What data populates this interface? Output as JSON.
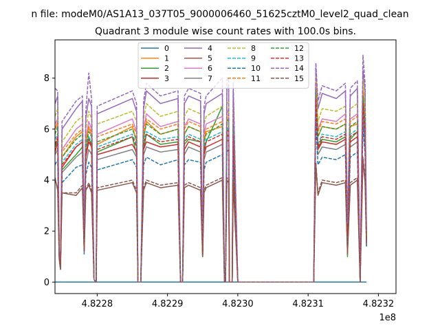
{
  "chart_data": {
    "type": "line",
    "suptitle": "n file: modeM0/AS1A13_037T05_9000006460_51625cztM0_level2_quad_clean",
    "title": "Quadrant 3 module wise count rates with 100.0s bins.",
    "xlabel": "",
    "ylabel": "",
    "x_offset_label": "1e8",
    "xlim": [
      4.82274,
      4.823225
    ],
    "ylim": [
      -0.45,
      9.5
    ],
    "x_ticks": [
      4.8228,
      4.8229,
      4.823,
      4.8231,
      4.8232
    ],
    "x_tick_labels": [
      "4.8228",
      "4.8229",
      "4.8230",
      "4.8231",
      "4.8232"
    ],
    "y_ticks": [
      0,
      2,
      4,
      6,
      8
    ],
    "y_tick_labels": [
      "0",
      "2",
      "4",
      "6",
      "8"
    ],
    "grid": false,
    "legend_position": "top-center",
    "legend_ncol": 4,
    "x_points": [
      4.82274,
      4.8227438,
      4.822746,
      4.8227478,
      4.82275,
      4.82277,
      4.822779,
      4.8227815,
      4.8227838,
      4.822788,
      4.822792,
      4.8227955,
      4.8227985,
      4.8228,
      4.82285,
      4.822856,
      4.822858,
      4.822862,
      4.822866,
      4.82287,
      4.82289,
      4.822915,
      4.8229185,
      4.8229215,
      4.822924,
      4.82293,
      4.822947,
      4.82295,
      4.822952,
      4.822955,
      4.822978,
      4.822981,
      4.8229825,
      4.8229845,
      4.822987,
      4.822988,
      4.8229895,
      4.822992,
      4.8229935,
      4.823,
      4.82305,
      4.8231,
      4.823108,
      4.823111,
      4.823114,
      4.82312,
      4.82314,
      4.823153,
      4.823156,
      4.82316,
      4.82317,
      4.823174,
      4.823178,
      4.823181,
      4.823183
    ],
    "series": [
      {
        "name": "0",
        "style": "solid",
        "color": "#1f77b4",
        "values": [
          0,
          0,
          0,
          0,
          0,
          0,
          0,
          0,
          0,
          0,
          0,
          0,
          0,
          0,
          0,
          0,
          0,
          0,
          0,
          0,
          0,
          0,
          0,
          0,
          0,
          0,
          0,
          0,
          0,
          0,
          0,
          0,
          0,
          0,
          0,
          0,
          0,
          0,
          0,
          0,
          0,
          0,
          0,
          0,
          0,
          0,
          0,
          0,
          0,
          0,
          0,
          0,
          0,
          0,
          0
        ]
      },
      {
        "name": "1",
        "style": "solid",
        "color": "#ff7f0e",
        "values": [
          6.0,
          6.3,
          1.2,
          0.7,
          4.9,
          5.7,
          5.9,
          1.4,
          5.3,
          6.1,
          5.7,
          0.1,
          0,
          5.4,
          6.1,
          5.5,
          0,
          0,
          5.6,
          6.3,
          5.8,
          6.0,
          0,
          0,
          5.8,
          6.1,
          5.9,
          1.2,
          5.5,
          5.9,
          6.1,
          0,
          0,
          6.3,
          6.4,
          0,
          0,
          0,
          6.2,
          0,
          0,
          0,
          0,
          7.8,
          5.7,
          6.1,
          6.0,
          6.2,
          2.0,
          6.1,
          6.2,
          0,
          7.6,
          6.2,
          1.8
        ]
      },
      {
        "name": "2",
        "style": "solid",
        "color": "#2ca02c",
        "values": [
          5.3,
          5.6,
          1.1,
          0.6,
          4.4,
          5.0,
          5.3,
          1.3,
          5.0,
          5.7,
          5.3,
          0.1,
          0,
          5.1,
          5.7,
          5.0,
          0,
          0,
          5.2,
          5.8,
          5.4,
          5.5,
          0,
          0,
          5.4,
          5.6,
          5.5,
          1.1,
          5.1,
          5.5,
          6.9,
          0,
          0,
          5.9,
          6.0,
          0,
          0,
          0,
          5.7,
          0,
          0,
          0,
          0,
          7.5,
          5.2,
          5.6,
          5.5,
          5.7,
          1.0,
          5.6,
          5.9,
          0,
          7.2,
          5.7,
          1.6
        ]
      },
      {
        "name": "3",
        "style": "solid",
        "color": "#d62728",
        "values": [
          5.1,
          5.5,
          1.1,
          0.6,
          4.5,
          5.3,
          5.5,
          1.3,
          4.9,
          5.5,
          5.3,
          0.1,
          0,
          5.0,
          5.4,
          5.1,
          0,
          0,
          5.2,
          5.5,
          5.3,
          5.4,
          0,
          0,
          5.2,
          5.5,
          5.3,
          1.1,
          5.0,
          5.3,
          5.6,
          0,
          0,
          5.7,
          5.8,
          0,
          0,
          0,
          5.6,
          0,
          0,
          0,
          0,
          7.1,
          5.2,
          5.5,
          5.4,
          5.6,
          1.7,
          5.5,
          5.7,
          0,
          6.9,
          5.6,
          1.6
        ]
      },
      {
        "name": "4",
        "style": "solid",
        "color": "#9467bd",
        "values": [
          7.0,
          7.3,
          1.3,
          0.7,
          6.0,
          6.8,
          7.1,
          1.6,
          6.4,
          7.2,
          6.9,
          0.1,
          0,
          6.6,
          7.2,
          6.7,
          0,
          0,
          6.8,
          7.5,
          7.0,
          7.2,
          0,
          0,
          7.0,
          7.3,
          7.1,
          1.3,
          6.6,
          7.0,
          7.4,
          0,
          0,
          7.6,
          7.7,
          0,
          0,
          0,
          7.5,
          0,
          0,
          0,
          0,
          8.4,
          6.8,
          7.4,
          7.2,
          7.5,
          2.2,
          7.3,
          7.6,
          0,
          8.3,
          7.5,
          1.9
        ]
      },
      {
        "name": "5",
        "style": "solid",
        "color": "#8c564b",
        "values": [
          4.1,
          3.6,
          0.9,
          0.5,
          3.5,
          3.4,
          3.7,
          1.2,
          3.6,
          3.8,
          3.5,
          0.1,
          0,
          3.6,
          3.9,
          3.5,
          0,
          0,
          3.6,
          3.9,
          3.7,
          3.8,
          0,
          0,
          3.7,
          3.8,
          3.6,
          1.0,
          3.5,
          3.7,
          4.0,
          0,
          0,
          4.0,
          3.9,
          0,
          0,
          0,
          3.9,
          0,
          0,
          0,
          0,
          4.6,
          3.4,
          3.9,
          3.8,
          3.9,
          1.1,
          3.8,
          4.0,
          0,
          4.8,
          3.9,
          1.4
        ]
      },
      {
        "name": "6",
        "style": "solid",
        "color": "#e377c2",
        "values": [
          6.2,
          6.4,
          1.2,
          0.7,
          5.2,
          6.0,
          6.2,
          1.4,
          5.6,
          6.3,
          6.0,
          0.1,
          0,
          5.8,
          6.4,
          5.9,
          0,
          0,
          6.0,
          6.6,
          6.1,
          6.3,
          0,
          0,
          6.1,
          6.4,
          6.2,
          1.2,
          5.8,
          6.2,
          6.5,
          0,
          0,
          6.6,
          6.8,
          0,
          0,
          0,
          6.6,
          0,
          0,
          0,
          0,
          8.0,
          6.0,
          6.4,
          6.3,
          6.6,
          2.0,
          6.4,
          6.6,
          0,
          7.7,
          6.5,
          1.8
        ]
      },
      {
        "name": "7",
        "style": "solid",
        "color": "#7f7f7f",
        "values": [
          5.0,
          5.2,
          1.0,
          0.6,
          4.3,
          4.9,
          5.1,
          1.2,
          4.6,
          5.2,
          5.0,
          0.1,
          0,
          4.8,
          5.2,
          4.9,
          0,
          0,
          5.0,
          5.3,
          5.1,
          5.2,
          0,
          0,
          5.0,
          5.3,
          5.1,
          1.0,
          4.8,
          5.1,
          5.4,
          0,
          0,
          5.5,
          5.6,
          0,
          0,
          0,
          5.4,
          0,
          0,
          0,
          0,
          6.8,
          5.0,
          5.3,
          5.2,
          5.4,
          1.6,
          5.3,
          5.5,
          0,
          6.6,
          5.4,
          1.5
        ]
      },
      {
        "name": "8",
        "style": "dashed",
        "color": "#bcbd22",
        "values": [
          6.5,
          6.8,
          1.2,
          0.7,
          5.5,
          6.3,
          6.5,
          1.5,
          6.0,
          6.7,
          6.4,
          0.1,
          0,
          6.2,
          6.7,
          6.3,
          0,
          0,
          6.4,
          7.0,
          6.5,
          6.7,
          0,
          0,
          6.5,
          6.8,
          6.6,
          1.2,
          6.2,
          6.5,
          6.9,
          0,
          0,
          7.0,
          7.1,
          0,
          0,
          0,
          6.9,
          0,
          0,
          0,
          0,
          8.1,
          6.3,
          6.8,
          6.7,
          6.9,
          2.1,
          6.8,
          7.0,
          0,
          8.0,
          6.9,
          1.8
        ]
      },
      {
        "name": "9",
        "style": "dashed",
        "color": "#17becf",
        "values": [
          5.6,
          5.8,
          1.1,
          0.6,
          4.7,
          5.4,
          5.6,
          1.3,
          5.1,
          5.7,
          5.5,
          0.1,
          0,
          5.3,
          5.8,
          5.4,
          0,
          0,
          5.5,
          5.9,
          5.6,
          5.7,
          0,
          0,
          5.6,
          5.8,
          5.6,
          1.1,
          5.3,
          5.6,
          5.9,
          0,
          0,
          6.0,
          6.1,
          0,
          0,
          0,
          5.9,
          0,
          0,
          0,
          0,
          7.3,
          5.4,
          5.8,
          5.7,
          5.9,
          1.8,
          5.8,
          6.0,
          0,
          7.1,
          5.9,
          1.6
        ]
      },
      {
        "name": "10",
        "style": "dashed",
        "color": "#1f77b4",
        "values": [
          4.6,
          4.8,
          1.0,
          0.5,
          3.9,
          4.5,
          4.6,
          1.1,
          4.2,
          4.7,
          4.5,
          0.1,
          0,
          4.4,
          4.8,
          4.5,
          0,
          0,
          4.6,
          4.9,
          4.6,
          4.8,
          0,
          0,
          4.6,
          4.8,
          4.7,
          1.0,
          4.4,
          4.7,
          5.0,
          0,
          0,
          5.1,
          5.2,
          0,
          0,
          0,
          5.0,
          0,
          0,
          0,
          0,
          6.3,
          4.6,
          4.9,
          4.8,
          5.0,
          1.5,
          4.9,
          5.1,
          0,
          6.1,
          5.0,
          1.4
        ]
      },
      {
        "name": "11",
        "style": "dashed",
        "color": "#ff7f0e",
        "values": [
          6.0,
          6.2,
          1.1,
          0.7,
          5.1,
          5.8,
          6.0,
          1.4,
          5.5,
          6.1,
          5.9,
          0.1,
          0,
          5.7,
          6.2,
          5.8,
          0,
          0,
          5.9,
          6.4,
          6.0,
          6.2,
          0,
          0,
          6.0,
          6.3,
          6.1,
          1.1,
          5.7,
          6.0,
          6.3,
          0,
          0,
          6.4,
          6.6,
          0,
          0,
          0,
          6.4,
          0,
          0,
          0,
          0,
          7.7,
          5.9,
          6.3,
          6.2,
          6.4,
          2.0,
          6.3,
          6.5,
          0,
          7.5,
          6.4,
          1.7
        ]
      },
      {
        "name": "12",
        "style": "dashed",
        "color": "#2ca02c",
        "values": [
          5.8,
          6.1,
          1.1,
          0.6,
          4.9,
          5.6,
          5.8,
          1.4,
          5.3,
          5.9,
          5.7,
          0.1,
          0,
          5.5,
          6.0,
          5.6,
          0,
          0,
          5.7,
          6.2,
          5.8,
          6.0,
          0,
          0,
          5.8,
          6.1,
          5.9,
          1.1,
          5.5,
          5.8,
          6.2,
          0,
          0,
          6.3,
          6.4,
          0,
          0,
          0,
          6.2,
          0,
          0,
          0,
          0,
          7.5,
          5.7,
          6.1,
          6.0,
          6.2,
          1.9,
          6.1,
          6.3,
          0,
          7.3,
          6.2,
          1.7
        ]
      },
      {
        "name": "13",
        "style": "dashed",
        "color": "#d62728",
        "values": [
          5.4,
          5.7,
          1.0,
          0.6,
          4.6,
          5.3,
          5.5,
          1.3,
          5.0,
          5.6,
          5.4,
          0.1,
          0,
          5.2,
          5.7,
          5.3,
          0,
          0,
          5.4,
          5.8,
          5.5,
          5.6,
          0,
          0,
          5.5,
          5.7,
          5.5,
          1.0,
          5.2,
          5.5,
          5.8,
          0,
          0,
          5.9,
          6.0,
          0,
          0,
          0,
          5.8,
          0,
          0,
          0,
          0,
          7.2,
          5.3,
          5.7,
          5.6,
          5.8,
          1.8,
          5.7,
          5.9,
          0,
          7.0,
          5.8,
          1.6
        ]
      },
      {
        "name": "14",
        "style": "dashed",
        "color": "#9467bd",
        "values": [
          7.6,
          7.5,
          1.3,
          0.8,
          6.3,
          7.1,
          7.3,
          1.6,
          6.7,
          8.2,
          7.2,
          0.1,
          0,
          6.9,
          7.5,
          7.0,
          0,
          0,
          7.1,
          7.8,
          7.3,
          7.5,
          0,
          0,
          7.3,
          7.6,
          7.4,
          1.3,
          6.9,
          7.3,
          8.0,
          0,
          0,
          7.9,
          8.0,
          0,
          0,
          0,
          7.8,
          0,
          0,
          0,
          0,
          8.6,
          7.1,
          7.7,
          7.5,
          7.8,
          2.3,
          7.6,
          7.9,
          0,
          8.9,
          7.8,
          2.0
        ]
      },
      {
        "name": "15",
        "style": "dashed",
        "color": "#8c564b",
        "values": [
          4.0,
          3.7,
          0.9,
          0.5,
          3.5,
          3.5,
          3.8,
          1.2,
          3.6,
          3.9,
          3.6,
          0.1,
          0,
          3.7,
          4.0,
          3.6,
          0,
          0,
          3.7,
          4.0,
          3.8,
          3.9,
          0,
          0,
          3.8,
          3.9,
          3.7,
          1.0,
          3.6,
          3.8,
          4.1,
          0,
          0,
          4.1,
          4.0,
          0,
          0,
          0,
          4.0,
          0,
          0,
          0,
          0,
          4.7,
          3.5,
          4.0,
          3.9,
          4.0,
          1.2,
          3.9,
          4.1,
          0,
          4.9,
          4.0,
          1.5
        ]
      }
    ]
  }
}
